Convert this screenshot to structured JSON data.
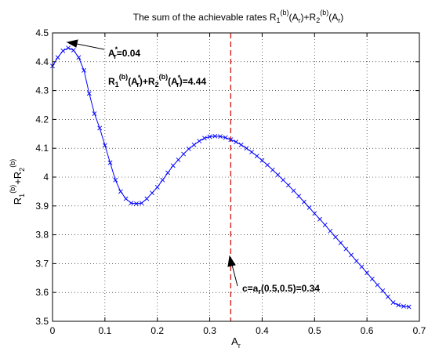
{
  "chart_data": {
    "type": "line",
    "title": {
      "prefix": "The sum of the achievable rates R",
      "sub1": "1",
      "sup1": "(b)",
      "mid1": "(A",
      "sub2": "r",
      "mid2": ")+R",
      "sub3": "2",
      "sup3": "(b)",
      "mid3": "(A",
      "sub4": "r",
      "suffix": ")"
    },
    "xlabel": {
      "main": "A",
      "sub": "r"
    },
    "ylabel": {
      "p1": "R",
      "sub1": "1",
      "sup1": "(b)",
      "p2": "+R",
      "sub2": "2",
      "sup2": "(b)"
    },
    "xlim": [
      0,
      0.7
    ],
    "ylim": [
      3.5,
      4.5
    ],
    "xticks": [
      "0",
      "0.1",
      "0.2",
      "0.3",
      "0.4",
      "0.5",
      "0.6",
      "0.7"
    ],
    "yticks": [
      "3.5",
      "3.6",
      "3.7",
      "3.8",
      "3.9",
      "4",
      "4.1",
      "4.2",
      "4.3",
      "4.4",
      "4.5"
    ],
    "grid": true,
    "series_color": "#0000ff",
    "marker": "x",
    "vline_color": "#d00000",
    "vline_x": 0.34,
    "x": [
      0.0,
      0.01,
      0.02,
      0.03,
      0.04,
      0.05,
      0.06,
      0.07,
      0.08,
      0.09,
      0.1,
      0.11,
      0.12,
      0.13,
      0.14,
      0.15,
      0.16,
      0.17,
      0.18,
      0.19,
      0.2,
      0.21,
      0.22,
      0.23,
      0.24,
      0.25,
      0.26,
      0.27,
      0.28,
      0.29,
      0.3,
      0.31,
      0.32,
      0.33,
      0.34,
      0.35,
      0.36,
      0.37,
      0.38,
      0.39,
      0.4,
      0.41,
      0.42,
      0.43,
      0.44,
      0.45,
      0.46,
      0.47,
      0.48,
      0.49,
      0.5,
      0.51,
      0.52,
      0.53,
      0.54,
      0.55,
      0.56,
      0.57,
      0.58,
      0.59,
      0.6,
      0.61,
      0.62,
      0.63,
      0.64,
      0.65,
      0.66,
      0.67,
      0.68
    ],
    "y": [
      4.385,
      4.415,
      4.438,
      4.448,
      4.44,
      4.415,
      4.37,
      4.29,
      4.22,
      4.17,
      4.11,
      4.05,
      3.99,
      3.95,
      3.925,
      3.91,
      3.908,
      3.91,
      3.925,
      3.945,
      3.965,
      3.99,
      4.015,
      4.04,
      4.06,
      4.08,
      4.098,
      4.112,
      4.125,
      4.135,
      4.14,
      4.142,
      4.141,
      4.137,
      4.13,
      4.122,
      4.112,
      4.1,
      4.087,
      4.073,
      4.058,
      4.042,
      4.025,
      4.008,
      3.99,
      3.972,
      3.953,
      3.934,
      3.914,
      3.894,
      3.874,
      3.854,
      3.834,
      3.813,
      3.792,
      3.772,
      3.751,
      3.73,
      3.709,
      3.689,
      3.668,
      3.647,
      3.626,
      3.606,
      3.585,
      3.565,
      3.556,
      3.552,
      3.55
    ],
    "annotations": {
      "peak": {
        "p1": "A",
        "sup": "*",
        "sub": "r",
        "p2": "=0.04"
      },
      "sum": {
        "p1": "R",
        "sub1": "1",
        "sup1": "(b)",
        "p2": "(A",
        "sup2": "*",
        "sub2": "r",
        "p3": ")+R",
        "sub3": "2",
        "sup3": "(b)",
        "p4": "(A",
        "sup4": "*",
        "sub4": "r",
        "p5": ")=4.44"
      },
      "c": {
        "p1": "c=a",
        "sub": "r",
        "p2": "(0.5,0.5)=0.34"
      }
    }
  }
}
